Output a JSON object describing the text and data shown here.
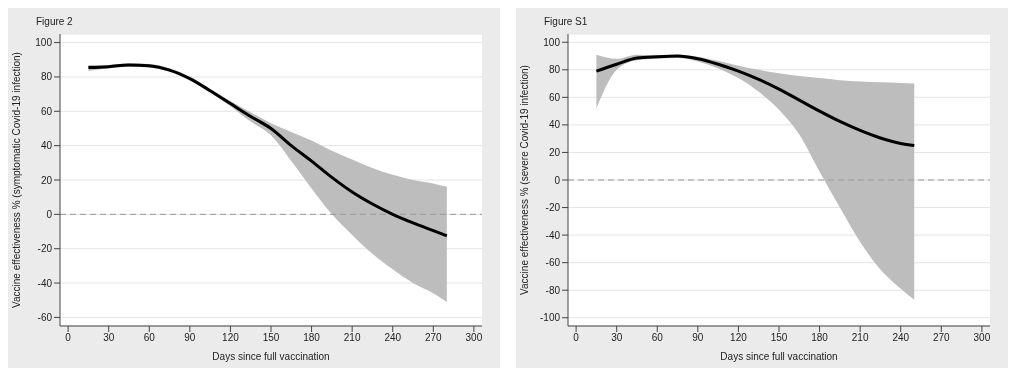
{
  "chart_data": [
    {
      "type": "line",
      "title": "Figure 2",
      "xlabel": "Days since full vaccination",
      "ylabel": "Vaccine effectiveness % (symptomatic Covid-19 infection)",
      "x": [
        15,
        30,
        45,
        60,
        75,
        90,
        105,
        120,
        135,
        150,
        165,
        180,
        195,
        210,
        225,
        240,
        255,
        270,
        280
      ],
      "series": [
        {
          "color": "#000000",
          "values": [
            85.5,
            86,
            87,
            86.5,
            84,
            79,
            72,
            64.5,
            57,
            50,
            40,
            31,
            21.5,
            13,
            6,
            0,
            -5,
            -9.5,
            -12.5
          ],
          "lower": [
            83.5,
            85,
            86,
            85.5,
            83,
            78,
            71,
            63,
            54,
            46,
            31,
            15,
            0,
            -12,
            -23,
            -32,
            -40,
            -46,
            -51
          ],
          "upper": [
            87,
            87,
            88,
            87.5,
            85,
            80,
            73,
            66,
            59.5,
            53,
            48,
            43,
            37,
            32,
            27,
            23,
            20,
            18,
            16
          ]
        }
      ],
      "xlim": [
        -6,
        306
      ],
      "xticks": [
        0,
        30,
        60,
        90,
        120,
        150,
        180,
        210,
        240,
        270,
        300
      ],
      "ylim": [
        -65,
        105
      ],
      "yticks": [
        -60,
        -40,
        -20,
        0,
        20,
        40,
        60,
        80,
        100
      ],
      "ref_lines": [
        {
          "axis": "y",
          "value": 0,
          "color": "#999999",
          "line_style": "dashed"
        }
      ],
      "grid": "y",
      "legend": false,
      "marker": "none",
      "line_style": "solid"
    },
    {
      "type": "line",
      "title": "Figure S1",
      "xlabel": "Days since full vaccination",
      "ylabel": "Vaccine effectiveness % (severe Covid-19 infection)",
      "x": [
        15,
        30,
        45,
        60,
        75,
        90,
        105,
        120,
        135,
        150,
        165,
        180,
        195,
        210,
        225,
        240,
        250
      ],
      "series": [
        {
          "color": "#000000",
          "values": [
            79,
            84,
            88.5,
            89.5,
            90,
            88,
            84,
            79,
            73,
            66,
            58,
            50,
            42.5,
            36,
            30.5,
            26.5,
            25
          ],
          "lower": [
            52,
            80,
            87,
            88,
            88.5,
            86,
            81,
            74,
            64,
            51,
            33,
            6,
            -20,
            -45,
            -65,
            -79,
            -87
          ],
          "upper": [
            91,
            88,
            91,
            90.5,
            91,
            89.5,
            86.5,
            83,
            80,
            77.5,
            75.5,
            74,
            72.5,
            71.5,
            71,
            70.5,
            70
          ]
        }
      ],
      "xlim": [
        -6,
        306
      ],
      "xticks": [
        0,
        30,
        60,
        90,
        120,
        150,
        180,
        210,
        240,
        270,
        300
      ],
      "ylim": [
        -106,
        106
      ],
      "yticks": [
        -100,
        -80,
        -60,
        -40,
        -20,
        0,
        20,
        40,
        60,
        80,
        100
      ],
      "ref_lines": [
        {
          "axis": "y",
          "value": 0,
          "color": "#999999",
          "line_style": "dashed"
        }
      ],
      "grid": "y",
      "legend": false,
      "marker": "none",
      "line_style": "solid"
    }
  ]
}
